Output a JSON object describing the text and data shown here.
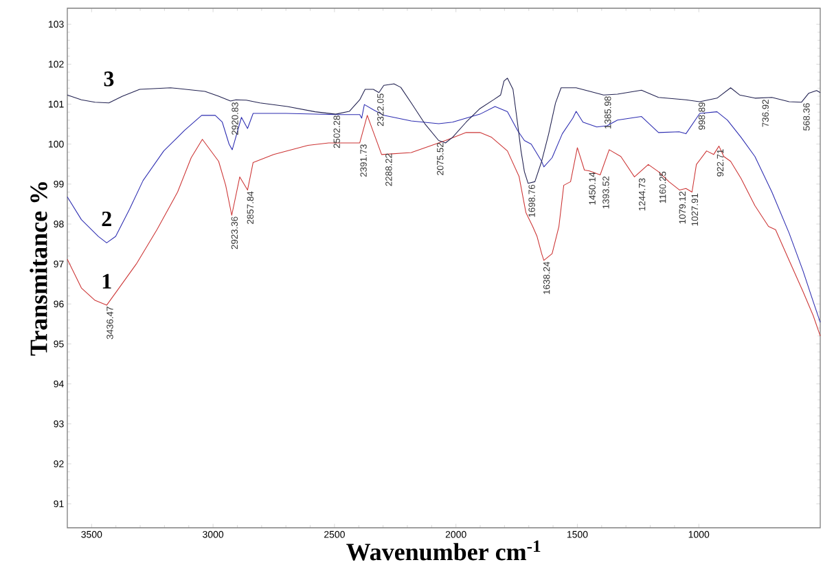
{
  "chart_data": {
    "type": "line",
    "xlabel": "Wavenumber cm$^{-1}$",
    "ylabel": "Transmitance %",
    "xlim": [
      3600,
      500
    ],
    "ylim": [
      90.4,
      103.4
    ],
    "xticks": [
      3500,
      3000,
      2500,
      2000,
      1500,
      1000
    ],
    "yticks": [
      91,
      92,
      93,
      94,
      95,
      96,
      97,
      98,
      99,
      100,
      101,
      102,
      103
    ],
    "marker": "none",
    "line_style": "solid",
    "series": [
      {
        "name": "1",
        "color": "#cc3333",
        "x": [
          3600,
          3542,
          3486,
          3438,
          3387,
          3316,
          3231,
          3146,
          3090,
          3044,
          2977,
          2948,
          2923,
          2890,
          2858,
          2835,
          2750,
          2609,
          2524,
          2396,
          2365,
          2306,
          2184,
          2043,
          1958,
          1901,
          1853,
          1788,
          1740,
          1712,
          1684,
          1666,
          1647,
          1638,
          1604,
          1576,
          1556,
          1528,
          1500,
          1471,
          1450,
          1406,
          1369,
          1321,
          1265,
          1208,
          1166,
          1123,
          1079,
          1053,
          1028,
          1010,
          968,
          939,
          917,
          897,
          869,
          826,
          769,
          713,
          684,
          628,
          571,
          529,
          500
        ],
        "values": [
          97.12,
          96.4,
          96.09,
          95.97,
          96.4,
          97.0,
          97.86,
          98.8,
          99.66,
          100.12,
          99.57,
          98.97,
          98.22,
          99.18,
          98.85,
          99.54,
          99.74,
          99.97,
          100.03,
          100.03,
          100.72,
          99.74,
          99.79,
          100.09,
          100.29,
          100.29,
          100.17,
          99.83,
          99.19,
          98.29,
          97.94,
          97.69,
          97.26,
          97.09,
          97.26,
          97.94,
          98.97,
          99.06,
          99.91,
          99.35,
          99.33,
          99.23,
          99.86,
          99.69,
          99.18,
          99.49,
          99.31,
          99.06,
          98.85,
          98.89,
          98.8,
          99.49,
          99.83,
          99.74,
          99.95,
          99.69,
          99.57,
          99.14,
          98.46,
          97.94,
          97.86,
          97.09,
          96.31,
          95.71,
          95.2
        ]
      },
      {
        "name": "2",
        "color": "#2b2bb0",
        "x": [
          3600,
          3542,
          3472,
          3438,
          3401,
          3344,
          3288,
          3203,
          3118,
          3047,
          2991,
          2962,
          2934,
          2921,
          2883,
          2858,
          2835,
          2700,
          2495,
          2396,
          2388,
          2377,
          2340,
          2297,
          2184,
          2071,
          2014,
          1901,
          1839,
          1788,
          1746,
          1718,
          1690,
          1647,
          1638,
          1604,
          1562,
          1519,
          1505,
          1477,
          1420,
          1378,
          1335,
          1236,
          1166,
          1081,
          1053,
          996,
          925,
          882,
          826,
          769,
          699,
          628,
          571,
          529,
          500
        ],
        "values": [
          98.68,
          98.11,
          97.69,
          97.53,
          97.69,
          98.37,
          99.09,
          99.83,
          100.34,
          100.72,
          100.72,
          100.55,
          100.0,
          99.86,
          100.67,
          100.39,
          100.77,
          100.77,
          100.74,
          100.74,
          100.65,
          100.99,
          100.86,
          100.72,
          100.58,
          100.51,
          100.55,
          100.75,
          100.94,
          100.81,
          100.34,
          100.09,
          100.0,
          99.57,
          99.43,
          99.66,
          100.26,
          100.65,
          100.82,
          100.55,
          100.43,
          100.46,
          100.6,
          100.69,
          100.29,
          100.31,
          100.26,
          100.77,
          100.81,
          100.6,
          100.17,
          99.69,
          98.8,
          97.77,
          96.83,
          96.06,
          95.54
        ]
      },
      {
        "name": "3",
        "color": "#1f1f4f",
        "x": [
          3600,
          3542,
          3486,
          3429,
          3373,
          3302,
          3175,
          3033,
          2977,
          2928,
          2906,
          2863,
          2807,
          2694,
          2580,
          2495,
          2439,
          2396,
          2374,
          2340,
          2317,
          2297,
          2255,
          2227,
          2184,
          2128,
          2071,
          2043,
          2014,
          1958,
          1901,
          1845,
          1816,
          1802,
          1788,
          1765,
          1746,
          1732,
          1718,
          1703,
          1675,
          1647,
          1618,
          1590,
          1567,
          1505,
          1448,
          1392,
          1335,
          1236,
          1166,
          1053,
          996,
          925,
          869,
          832,
          769,
          699,
          628,
          577,
          548,
          515,
          500
        ],
        "values": [
          101.23,
          101.11,
          101.05,
          101.03,
          101.2,
          101.37,
          101.41,
          101.32,
          101.2,
          101.08,
          101.11,
          101.1,
          101.03,
          100.94,
          100.81,
          100.75,
          100.82,
          101.11,
          101.37,
          101.37,
          101.29,
          101.47,
          101.51,
          101.42,
          101.03,
          100.51,
          100.09,
          100.03,
          100.17,
          100.55,
          100.89,
          101.11,
          101.23,
          101.58,
          101.65,
          101.37,
          100.51,
          99.83,
          99.31,
          99.02,
          99.06,
          99.57,
          100.26,
          101.03,
          101.41,
          101.41,
          101.32,
          101.23,
          101.25,
          101.35,
          101.17,
          101.11,
          101.06,
          101.15,
          101.41,
          101.23,
          101.15,
          101.17,
          101.06,
          101.05,
          101.27,
          101.34,
          101.29
        ]
      }
    ],
    "annotations": [
      {
        "text": "3436.47",
        "x": 3436,
        "y": 95.97
      },
      {
        "text": "2923.36",
        "x": 2923,
        "y": 98.22
      },
      {
        "text": "2857.84",
        "x": 2858,
        "y": 98.85
      },
      {
        "text": "2920.83",
        "x": 2921,
        "y": 101.08
      },
      {
        "text": "2502.28",
        "x": 2502,
        "y": 100.75
      },
      {
        "text": "2391.73",
        "x": 2392,
        "y": 100.03
      },
      {
        "text": "2322.05",
        "x": 2322,
        "y": 101.3
      },
      {
        "text": "2288.22",
        "x": 2288,
        "y": 99.8
      },
      {
        "text": "2075.52",
        "x": 2076,
        "y": 100.07
      },
      {
        "text": "1698.76",
        "x": 1699,
        "y": 99.02
      },
      {
        "text": "1638.24",
        "x": 1638,
        "y": 97.09
      },
      {
        "text": "1450.14",
        "x": 1450,
        "y": 99.33
      },
      {
        "text": "1393.52",
        "x": 1394,
        "y": 99.23
      },
      {
        "text": "1385.98",
        "x": 1386,
        "y": 101.23
      },
      {
        "text": "1244.73",
        "x": 1245,
        "y": 99.18
      },
      {
        "text": "1160.25",
        "x": 1160,
        "y": 99.35
      },
      {
        "text": "1079.12",
        "x": 1079,
        "y": 98.85
      },
      {
        "text": "1027.91",
        "x": 1028,
        "y": 98.8
      },
      {
        "text": "998.89",
        "x": 999,
        "y": 101.08
      },
      {
        "text": "922.71",
        "x": 923,
        "y": 99.91
      },
      {
        "text": "736.92",
        "x": 737,
        "y": 101.15
      },
      {
        "text": "568.36",
        "x": 568,
        "y": 101.06
      }
    ]
  }
}
